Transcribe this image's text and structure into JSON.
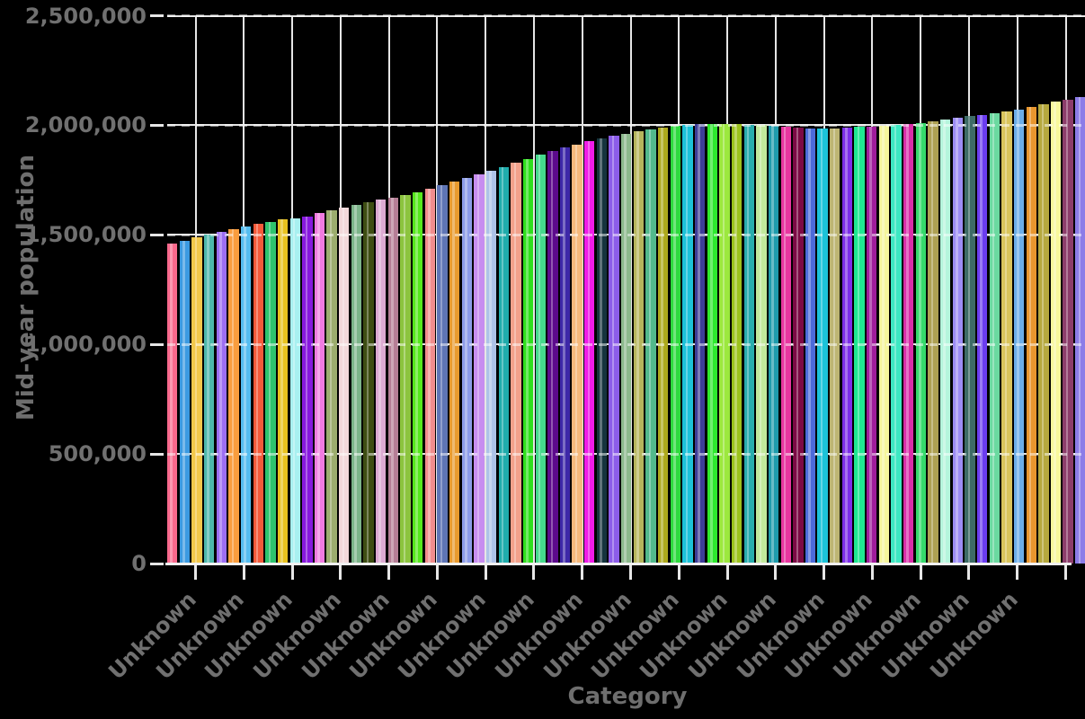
{
  "chart_data": {
    "type": "bar",
    "title": "",
    "xlabel": "Category",
    "ylabel": "Mid-year population",
    "ylim": [
      0,
      2500000
    ],
    "grid": true,
    "legend": "none",
    "y_ticks": [
      {
        "value": 0,
        "label": "0"
      },
      {
        "value": 500000,
        "label": "500,000"
      },
      {
        "value": 1000000,
        "label": "1,000,000"
      },
      {
        "value": 1500000,
        "label": "1,500,000"
      },
      {
        "value": 2000000,
        "label": "2,000,000"
      },
      {
        "value": 2500000,
        "label": "2,500,000"
      }
    ],
    "x_tick_labels": [
      "Unknown",
      "Unknown",
      "Unknown",
      "Unknown",
      "Unknown",
      "Unknown",
      "Unknown",
      "Unknown",
      "Unknown",
      "Unknown",
      "Unknown",
      "Unknown",
      "Unknown",
      "Unknown",
      "Unknown",
      "Unknown",
      "Unknown",
      "Unknown",
      ""
    ],
    "bars": [
      {
        "value": 1460000,
        "color": "#f8698c"
      },
      {
        "value": 1472000,
        "color": "#3b9ae1"
      },
      {
        "value": 1488000,
        "color": "#f3c84b"
      },
      {
        "value": 1500000,
        "color": "#4db8ab"
      },
      {
        "value": 1512000,
        "color": "#9c6ef2"
      },
      {
        "value": 1524000,
        "color": "#f99d3e"
      },
      {
        "value": 1537000,
        "color": "#55bdf0"
      },
      {
        "value": 1549000,
        "color": "#f45a3a"
      },
      {
        "value": 1560000,
        "color": "#2ec46e"
      },
      {
        "value": 1570000,
        "color": "#e8c11e"
      },
      {
        "value": 1576000,
        "color": "#a8f0f0"
      },
      {
        "value": 1583000,
        "color": "#8718dd"
      },
      {
        "value": 1598000,
        "color": "#f07be0"
      },
      {
        "value": 1610000,
        "color": "#9cad6e"
      },
      {
        "value": 1623000,
        "color": "#f2d8da"
      },
      {
        "value": 1638000,
        "color": "#7cb489"
      },
      {
        "value": 1650000,
        "color": "#3e4e13"
      },
      {
        "value": 1661000,
        "color": "#dcaad2"
      },
      {
        "value": 1671000,
        "color": "#b57e96"
      },
      {
        "value": 1682000,
        "color": "#8cc43e"
      },
      {
        "value": 1695000,
        "color": "#55e81c"
      },
      {
        "value": 1710000,
        "color": "#f08d8d"
      },
      {
        "value": 1726000,
        "color": "#5f75b5"
      },
      {
        "value": 1742000,
        "color": "#e89a2e"
      },
      {
        "value": 1758000,
        "color": "#8c9ce8"
      },
      {
        "value": 1774000,
        "color": "#c78df0"
      },
      {
        "value": 1792000,
        "color": "#aec3e8"
      },
      {
        "value": 1810000,
        "color": "#20acac"
      },
      {
        "value": 1828000,
        "color": "#f2a18b"
      },
      {
        "value": 1847000,
        "color": "#2edf1c"
      },
      {
        "value": 1865000,
        "color": "#45d98c"
      },
      {
        "value": 1882000,
        "color": "#5c0a8c"
      },
      {
        "value": 1898000,
        "color": "#3d28a8"
      },
      {
        "value": 1913000,
        "color": "#f5b97c"
      },
      {
        "value": 1927000,
        "color": "#ef1ce8"
      },
      {
        "value": 1940000,
        "color": "#15343d"
      },
      {
        "value": 1951000,
        "color": "#8c5de8"
      },
      {
        "value": 1961000,
        "color": "#8cb98c"
      },
      {
        "value": 1971000,
        "color": "#b5b55c"
      },
      {
        "value": 1981000,
        "color": "#52b98c"
      },
      {
        "value": 1991000,
        "color": "#ada81d"
      },
      {
        "value": 1998000,
        "color": "#2eda3e"
      },
      {
        "value": 2002000,
        "color": "#1cc2d9"
      },
      {
        "value": 2004000,
        "color": "#3d3d99"
      },
      {
        "value": 2005000,
        "color": "#2ee82e"
      },
      {
        "value": 2005000,
        "color": "#9ce83e"
      },
      {
        "value": 2004000,
        "color": "#9cc21d"
      },
      {
        "value": 2002000,
        "color": "#29adad"
      },
      {
        "value": 2000000,
        "color": "#c2e89c"
      },
      {
        "value": 1997000,
        "color": "#1f9cad"
      },
      {
        "value": 1993000,
        "color": "#e836a0"
      },
      {
        "value": 1988000,
        "color": "#7c0a45"
      },
      {
        "value": 1984000,
        "color": "#4d6bd9"
      },
      {
        "value": 1984000,
        "color": "#1cc2d9"
      },
      {
        "value": 1986000,
        "color": "#bdb573"
      },
      {
        "value": 1989000,
        "color": "#7c2ee8"
      },
      {
        "value": 1992000,
        "color": "#1fe891"
      },
      {
        "value": 1995000,
        "color": "#a01c9c"
      },
      {
        "value": 1998000,
        "color": "#f5f59c"
      },
      {
        "value": 2001000,
        "color": "#3de8c2"
      },
      {
        "value": 2005000,
        "color": "#d92ea8"
      },
      {
        "value": 2011000,
        "color": "#36d96b"
      },
      {
        "value": 2018000,
        "color": "#ada052"
      },
      {
        "value": 2026000,
        "color": "#b5f5dc"
      },
      {
        "value": 2034000,
        "color": "#9c8cf5"
      },
      {
        "value": 2041000,
        "color": "#3d6b66"
      },
      {
        "value": 2048000,
        "color": "#6b3df0"
      },
      {
        "value": 2055000,
        "color": "#6bd9a0"
      },
      {
        "value": 2063000,
        "color": "#d9c45c"
      },
      {
        "value": 2073000,
        "color": "#6bade8"
      },
      {
        "value": 2085000,
        "color": "#e8962e"
      },
      {
        "value": 2097000,
        "color": "#b5a83e"
      },
      {
        "value": 2107000,
        "color": "#f8f89c"
      },
      {
        "value": 2115000,
        "color": "#8c3d6b"
      },
      {
        "value": 2128000,
        "color": "#8c7ce8"
      }
    ],
    "colors": {
      "background": "#000000",
      "gridlines": "#e6e6e6",
      "axis_line": "#f2f2f2",
      "tick_labels": "#707070",
      "axis_titles": "#6e6e6e"
    }
  }
}
